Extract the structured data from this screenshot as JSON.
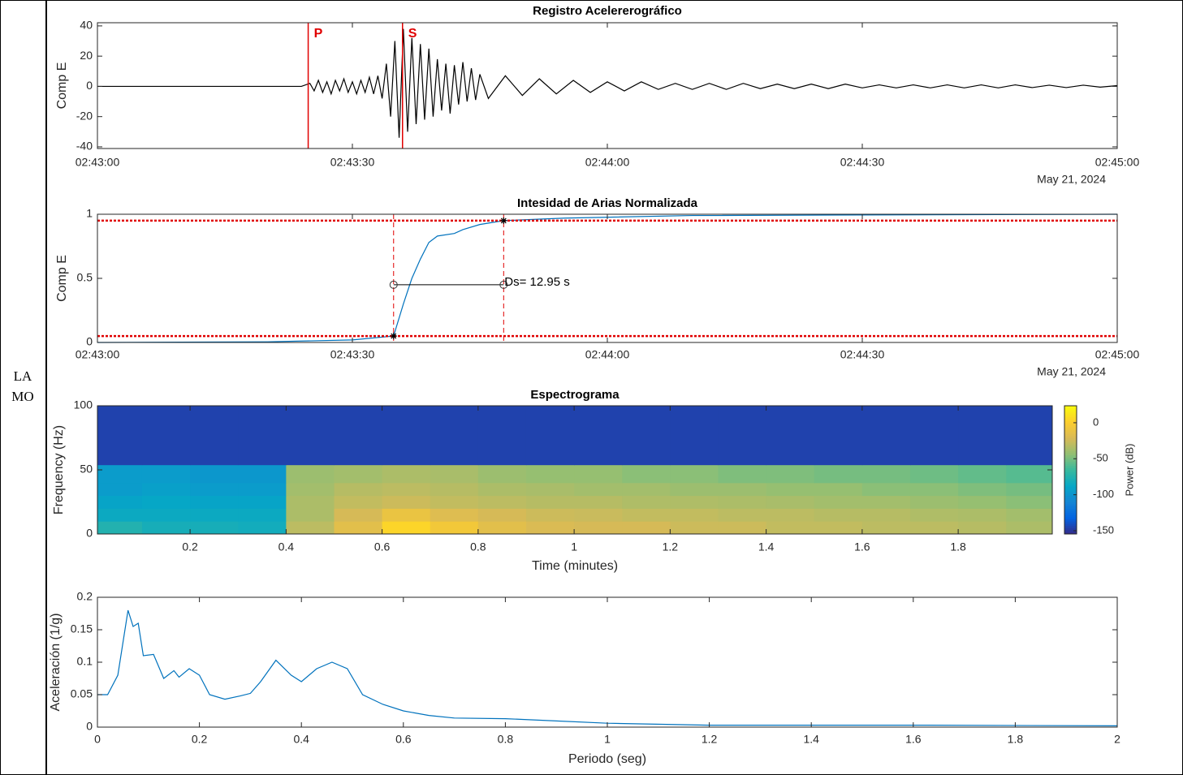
{
  "station_label": [
    "LA",
    "MO"
  ],
  "chart_data": [
    {
      "type": "line",
      "title": "Registro Acelererográfico",
      "ylabel": "Comp E",
      "date_label": "May 21, 2024",
      "color": "#000000",
      "x": [
        0,
        4,
        8,
        12,
        16,
        20,
        24,
        25,
        25.5,
        26,
        26.5,
        27,
        27.5,
        28,
        28.5,
        29,
        29.5,
        30,
        30.5,
        31,
        31.5,
        32,
        32.5,
        33,
        33.5,
        34,
        34.5,
        35,
        35.5,
        36,
        36.5,
        37,
        37.5,
        38,
        38.5,
        39,
        39.5,
        40,
        40.5,
        41,
        41.5,
        42,
        42.5,
        43,
        43.5,
        44,
        44.5,
        45,
        46,
        48,
        50,
        52,
        54,
        56,
        58,
        60,
        62,
        64,
        66,
        68,
        70,
        72,
        74,
        76,
        78,
        80,
        82,
        84,
        86,
        88,
        90,
        92,
        94,
        96,
        98,
        100,
        102,
        104,
        106,
        108,
        110,
        112,
        114,
        116,
        118,
        120
      ],
      "values": [
        0,
        0,
        0,
        0,
        0,
        0,
        0,
        2,
        -3,
        4,
        -4,
        3,
        -5,
        4,
        -3,
        5,
        -4,
        3,
        -5,
        4,
        -4,
        6,
        -5,
        7,
        -8,
        15,
        -20,
        30,
        -34,
        38,
        -30,
        32,
        -25,
        28,
        -22,
        25,
        -20,
        18,
        -16,
        15,
        -18,
        14,
        -12,
        16,
        -10,
        12,
        -9,
        8,
        -8,
        7,
        -6,
        5,
        -5,
        4,
        -4,
        3,
        -3,
        3,
        -2,
        2,
        -2,
        2,
        -2,
        2,
        -1.5,
        1.5,
        -1.5,
        1.5,
        -1.5,
        1.5,
        -1,
        1,
        -1,
        1,
        -1,
        1,
        -1,
        1,
        -1,
        1,
        -0.8,
        0.8,
        -0.8,
        0.8,
        -0.5,
        0.5
      ],
      "phase_picks": [
        {
          "label": "P",
          "x": 24.8
        },
        {
          "label": "S",
          "x": 35.9
        }
      ],
      "xlim": [
        0,
        120
      ],
      "xticks": [
        {
          "value": 0,
          "label": "02:43:00"
        },
        {
          "value": 30,
          "label": "02:43:30"
        },
        {
          "value": 60,
          "label": "02:44:00"
        },
        {
          "value": 90,
          "label": "02:44:30"
        },
        {
          "value": 120,
          "label": "02:45:00"
        }
      ],
      "ylim": [
        -41.1,
        42.1
      ],
      "yticks": [
        -40,
        -20,
        0,
        20,
        40
      ]
    },
    {
      "type": "line",
      "title": "Intesidad de Arias Normalizada",
      "ylabel": "Comp E",
      "date_label": "May 21, 2024",
      "color": "#0072bd",
      "x": [
        0,
        20,
        30,
        34.85,
        36,
        37,
        38,
        39,
        40,
        42,
        43,
        45,
        47.8,
        55,
        70,
        120
      ],
      "values": [
        0,
        0.005,
        0.02,
        0.05,
        0.3,
        0.5,
        0.65,
        0.78,
        0.83,
        0.85,
        0.88,
        0.92,
        0.95,
        0.97,
        0.99,
        1
      ],
      "reference_lines": [
        0.05,
        0.95
      ],
      "duration": {
        "start": 34.85,
        "end": 47.8,
        "y": 0.45,
        "label": "Ds= 12.95 s"
      },
      "xlim": [
        0,
        120
      ],
      "xticks": [
        {
          "value": 0,
          "label": "02:43:00"
        },
        {
          "value": 30,
          "label": "02:43:30"
        },
        {
          "value": 60,
          "label": "02:44:00"
        },
        {
          "value": 90,
          "label": "02:44:30"
        },
        {
          "value": 120,
          "label": "02:45:00"
        }
      ],
      "ylim": [
        0,
        1
      ],
      "yticks": [
        0,
        0.5,
        1
      ]
    },
    {
      "type": "heatmap",
      "title": "Espectrograma",
      "xlabel": "Time (minutes)",
      "ylabel": "Frequency (Hz)",
      "colorbar_label": "Power (dB)",
      "x_edges": [
        0.007,
        0.1,
        0.2,
        0.3,
        0.4,
        0.5,
        0.6,
        0.7,
        0.8,
        0.9,
        1,
        1.1,
        1.2,
        1.3,
        1.4,
        1.5,
        1.6,
        1.7,
        1.8,
        1.9,
        1.996
      ],
      "y_edges": [
        0,
        10,
        20,
        30,
        40,
        54,
        100
      ],
      "z": [
        [
          -75,
          -80,
          -80,
          -82,
          -30,
          -15,
          5,
          -5,
          -15,
          -20,
          -22,
          -22,
          -25,
          -25,
          -28,
          -28,
          -30,
          -30,
          -32,
          -35
        ],
        [
          -85,
          -85,
          -85,
          -85,
          -35,
          -22,
          -10,
          -18,
          -22,
          -25,
          -26,
          -28,
          -28,
          -30,
          -30,
          -32,
          -32,
          -34,
          -35,
          -38
        ],
        [
          -90,
          -88,
          -90,
          -90,
          -35,
          -28,
          -25,
          -28,
          -30,
          -32,
          -32,
          -34,
          -34,
          -35,
          -36,
          -38,
          -38,
          -40,
          -42,
          -45
        ],
        [
          -95,
          -92,
          -95,
          -95,
          -38,
          -32,
          -30,
          -32,
          -35,
          -36,
          -38,
          -38,
          -40,
          -40,
          -42,
          -42,
          -45,
          -45,
          -48,
          -50
        ],
        [
          -95,
          -95,
          -98,
          -98,
          -40,
          -38,
          -35,
          -36,
          -40,
          -42,
          -42,
          -45,
          -45,
          -48,
          -48,
          -50,
          -50,
          -52,
          -55,
          -58
        ],
        [
          -145,
          -145,
          -145,
          -145,
          -145,
          -145,
          -145,
          -145,
          -145,
          -145,
          -145,
          -145,
          -145,
          -145,
          -145,
          -145,
          -145,
          -145,
          -145,
          -145
        ]
      ],
      "clim": [
        -154.5,
        23.6
      ],
      "colorbar_ticks": [
        -150,
        -100,
        -50,
        0
      ],
      "xlim": [
        0.007,
        1.996
      ],
      "xticks": [
        0.2,
        0.4,
        0.6,
        0.8,
        1,
        1.2,
        1.4,
        1.6,
        1.8
      ],
      "ylim": [
        0,
        100
      ],
      "yticks": [
        0,
        50,
        100
      ]
    },
    {
      "type": "line",
      "xlabel": "Periodo (seg)",
      "ylabel": "Aceleración (1/g)",
      "color": "#0072bd",
      "x": [
        0,
        0.02,
        0.04,
        0.06,
        0.07,
        0.08,
        0.09,
        0.11,
        0.13,
        0.15,
        0.16,
        0.18,
        0.2,
        0.22,
        0.25,
        0.28,
        0.3,
        0.32,
        0.35,
        0.38,
        0.4,
        0.43,
        0.46,
        0.49,
        0.52,
        0.56,
        0.6,
        0.65,
        0.7,
        0.8,
        1,
        1.2,
        1.6,
        2
      ],
      "values": [
        0.05,
        0.05,
        0.08,
        0.18,
        0.155,
        0.16,
        0.11,
        0.112,
        0.075,
        0.087,
        0.077,
        0.09,
        0.08,
        0.05,
        0.043,
        0.048,
        0.052,
        0.07,
        0.103,
        0.08,
        0.07,
        0.09,
        0.1,
        0.09,
        0.05,
        0.035,
        0.025,
        0.018,
        0.014,
        0.013,
        0.006,
        0.003,
        0.003,
        0.002
      ],
      "xlim": [
        0,
        2
      ],
      "xticks": [
        0,
        0.2,
        0.4,
        0.6,
        0.8,
        1,
        1.2,
        1.4,
        1.6,
        1.8,
        2
      ],
      "ylim": [
        0,
        0.2
      ],
      "yticks": [
        0,
        0.05,
        0.1,
        0.15,
        0.2
      ]
    }
  ]
}
